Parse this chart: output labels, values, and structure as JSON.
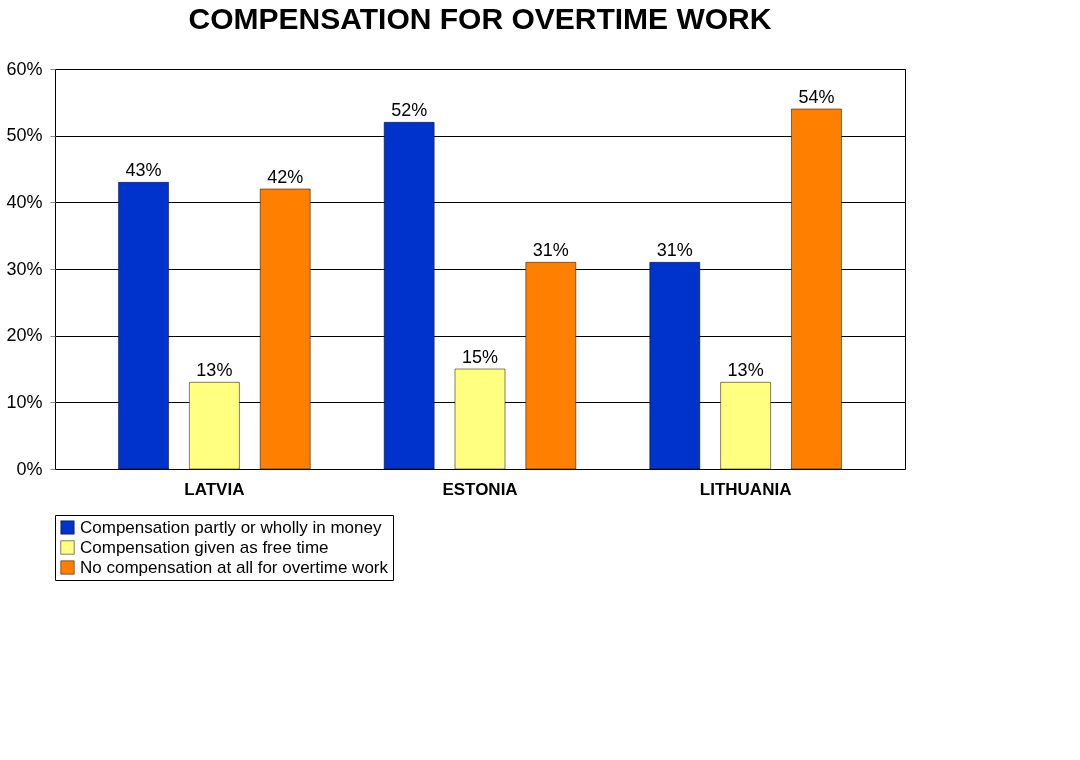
{
  "chart_data": {
    "type": "bar",
    "title": "COMPENSATION FOR OVERTIME WORK",
    "categories": [
      "LATVIA",
      "ESTONIA",
      "LITHUANIA"
    ],
    "series": [
      {
        "name": "Compensation partly or wholly in money",
        "color": "#0033cc",
        "values": [
          43,
          52,
          31
        ],
        "value_labels": [
          "43%",
          "52%",
          "31%"
        ]
      },
      {
        "name": "Compensation given as free time",
        "color": "#ffff80",
        "values": [
          13,
          15,
          13
        ],
        "value_labels": [
          "13%",
          "15%",
          "13%"
        ]
      },
      {
        "name": "No compensation at all for overtime work",
        "color": "#ff8000",
        "values": [
          42,
          31,
          54
        ],
        "value_labels": [
          "42%",
          "31%",
          "54%"
        ]
      }
    ],
    "ylim": [
      0,
      60
    ],
    "yticks": [
      {
        "value": 0,
        "label": "0%"
      },
      {
        "value": 10,
        "label": "10%"
      },
      {
        "value": 20,
        "label": "20%"
      },
      {
        "value": 30,
        "label": "30%"
      },
      {
        "value": 40,
        "label": "40%"
      },
      {
        "value": 50,
        "label": "50%"
      },
      {
        "value": 60,
        "label": "60%"
      }
    ],
    "grid": "y",
    "legend": "bottom"
  }
}
